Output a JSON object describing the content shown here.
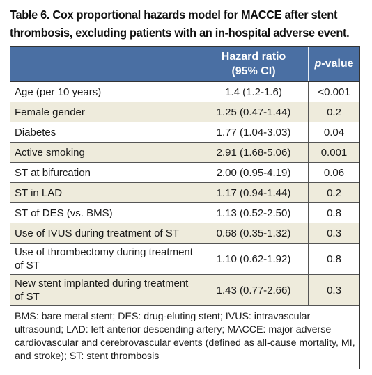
{
  "title_line1": "Table 6. Cox proportional hazards model for MACCE after stent",
  "title_line2": "thrombosis, excluding patients with an in-hospital adverse event.",
  "header": {
    "col1": "",
    "col2_line1": "Hazard ratio",
    "col2_line2": "(95% CI)",
    "col3_italic": "p",
    "col3_rest": "-value"
  },
  "rows": [
    {
      "label": "Age (per 10 years)",
      "hr": "1.4 (1.2-1.6)",
      "p": "<0.001"
    },
    {
      "label": "Female gender",
      "hr": "1.25 (0.47-1.44)",
      "p": "0.2"
    },
    {
      "label": "Diabetes",
      "hr": "1.77 (1.04-3.03)",
      "p": "0.04"
    },
    {
      "label": "Active smoking",
      "hr": "2.91 (1.68-5.06)",
      "p": "0.001"
    },
    {
      "label": "ST at bifurcation",
      "hr": "2.00 (0.95-4.19)",
      "p": "0.06"
    },
    {
      "label": "ST in LAD",
      "hr": "1.17 (0.94-1.44)",
      "p": "0.2"
    },
    {
      "label": "ST of DES (vs. BMS)",
      "hr": "1.13 (0.52-2.50)",
      "p": "0.8"
    },
    {
      "label": "Use of IVUS during treatment of ST",
      "hr": "0.68 (0.35-1.32)",
      "p": "0.3"
    },
    {
      "label": "Use of thrombectomy during treatment of ST",
      "hr": "1.10 (0.62-1.92)",
      "p": "0.8"
    },
    {
      "label": "New stent implanted during treatment of ST",
      "hr": "1.43 (0.77-2.66)",
      "p": "0.3"
    }
  ],
  "footnote": "BMS: bare metal stent; DES: drug-eluting stent; IVUS: intravascular ultrasound; LAD: left anterior descending artery; MACCE: major adverse cardiovascular and cerebrovascular events (defined as all-cause mortality, MI, and stroke); ST: stent thrombosis",
  "colors": {
    "header_bg": "#4a6fa3",
    "alt_row_bg": "#eeebdc"
  }
}
